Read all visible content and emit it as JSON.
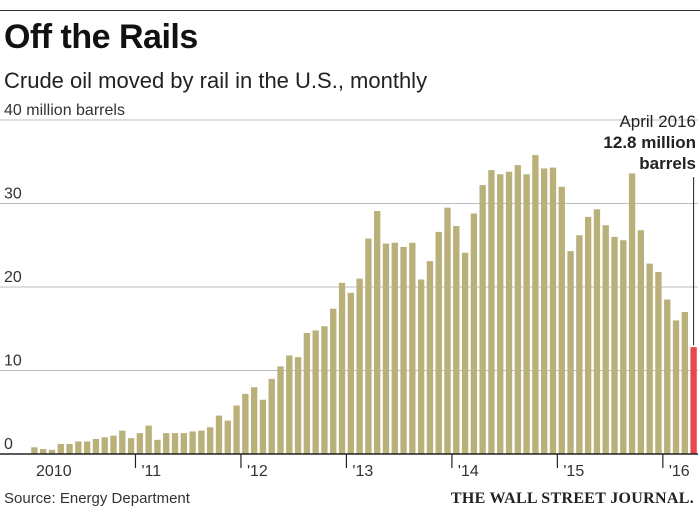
{
  "header": {
    "title": "Off the Rails",
    "subtitle": "Crude oil moved by rail in the U.S., monthly"
  },
  "footer": {
    "source": "Source: Energy Department",
    "publisher": "THE WALL STREET JOURNAL."
  },
  "chart_data": {
    "type": "bar",
    "ylabel": "40 million barrels",
    "ylim": [
      0,
      40
    ],
    "yticks": [
      0,
      10,
      20,
      30
    ],
    "grid": true,
    "bar_color": "#b9b07a",
    "highlight_color": "#e8474b",
    "year_labels": [
      "2010",
      "'11",
      "'12",
      "'13",
      "'14",
      "'15",
      "'16"
    ],
    "annotation": {
      "line1": "April 2016",
      "line2": "12.8 million",
      "line3": "barrels"
    },
    "series": [
      {
        "values": [
          0.8,
          0.6,
          0.5,
          1.2,
          1.2,
          1.5,
          1.5,
          1.8,
          2.0,
          2.2,
          2.8,
          1.9,
          2.5,
          3.4,
          1.7,
          2.5,
          2.5,
          2.5,
          2.7,
          2.8,
          3.2,
          4.6,
          4.0,
          5.8,
          7.2,
          8.0,
          6.5,
          9.0,
          10.5,
          11.8,
          11.6,
          14.5,
          14.8,
          15.3,
          17.4,
          20.5,
          19.3,
          21.0,
          25.8,
          29.1,
          25.2,
          25.3,
          24.8,
          25.3,
          20.9,
          23.1,
          26.6,
          29.5,
          27.3,
          24.1,
          28.8,
          32.2,
          34.0,
          33.5,
          33.8,
          34.6,
          33.5,
          35.8,
          34.2,
          34.3,
          32.0,
          24.3,
          26.2,
          28.4,
          29.3,
          27.4,
          26.0,
          25.6,
          33.6,
          26.8,
          22.8,
          21.8,
          18.5,
          16.0,
          17.0,
          12.8
        ]
      }
    ]
  }
}
